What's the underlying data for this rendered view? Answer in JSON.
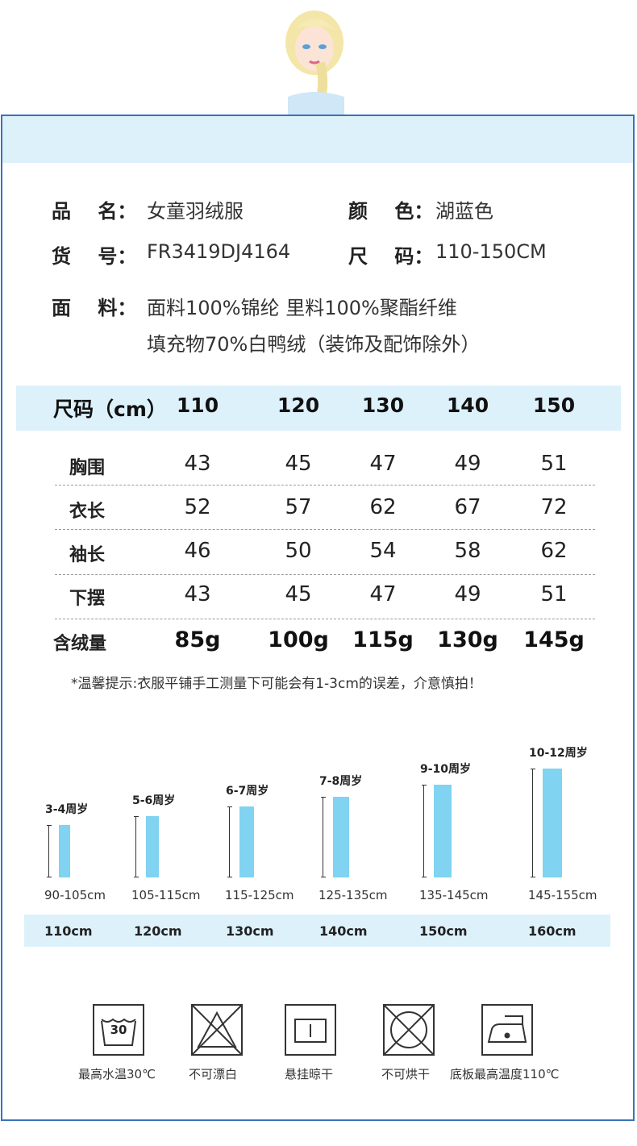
{
  "product": {
    "name_label": "品    名：",
    "name": "女童羽绒服",
    "color_label": "颜    色：",
    "color": "湖蓝色",
    "sku_label": "货    号：",
    "sku": "FR3419DJ4164",
    "size_label": "尺    码：",
    "size": "110-150CM",
    "fabric_label": "面    料：",
    "fabric_line1": "面料100%锦纶 里料100%聚酯纤维",
    "fabric_line2": "填充物70%白鸭绒（装饰及配饰除外）"
  },
  "size_table": {
    "header_label": "尺码（cm）",
    "sizes": [
      "110",
      "120",
      "130",
      "140",
      "150"
    ],
    "rows": [
      {
        "label": "胸围",
        "values": [
          "43",
          "45",
          "47",
          "49",
          "51"
        ]
      },
      {
        "label": "衣长",
        "values": [
          "52",
          "57",
          "62",
          "67",
          "72"
        ]
      },
      {
        "label": "袖长",
        "values": [
          "46",
          "50",
          "54",
          "58",
          "62"
        ]
      },
      {
        "label": "下摆",
        "values": [
          "43",
          "45",
          "47",
          "49",
          "51"
        ]
      },
      {
        "label": "含绒量",
        "values": [
          "85g",
          "100g",
          "115g",
          "130g",
          "145g"
        ]
      }
    ],
    "note": "*温馨提示:衣服平铺手工测量下可能会有1-3cm的误差，介意慎拍！"
  },
  "growth_chart": {
    "groups": [
      {
        "age": "3-4周岁",
        "height_range": "90-105cm",
        "recommended": "110cm",
        "level": 0.48
      },
      {
        "age": "5-6周岁",
        "height_range": "105-115cm",
        "recommended": "120cm",
        "level": 0.56
      },
      {
        "age": "6-7周岁",
        "height_range": "115-125cm",
        "recommended": "130cm",
        "level": 0.65
      },
      {
        "age": "7-8周岁",
        "height_range": "125-135cm",
        "recommended": "140cm",
        "level": 0.74
      },
      {
        "age": "9-10周岁",
        "height_range": "135-145cm",
        "recommended": "150cm",
        "level": 0.85
      },
      {
        "age": "10-12周岁",
        "height_range": "145-155cm",
        "recommended": "160cm",
        "level": 1.0
      }
    ],
    "bar_color": "#80d3f1"
  },
  "care": [
    {
      "icon": "wash-30-icon",
      "label": "最高水温30℃",
      "wash_temp": "30"
    },
    {
      "icon": "no-bleach-icon",
      "label": "不可漂白"
    },
    {
      "icon": "hang-dry-icon",
      "label": "悬挂晾干"
    },
    {
      "icon": "no-tumble-dry-icon",
      "label": "不可烘干"
    },
    {
      "icon": "iron-110-icon",
      "label": "底板最高温度110℃"
    }
  ],
  "colors": {
    "frame": "#3b72b8",
    "band": "#ddf1fb"
  }
}
